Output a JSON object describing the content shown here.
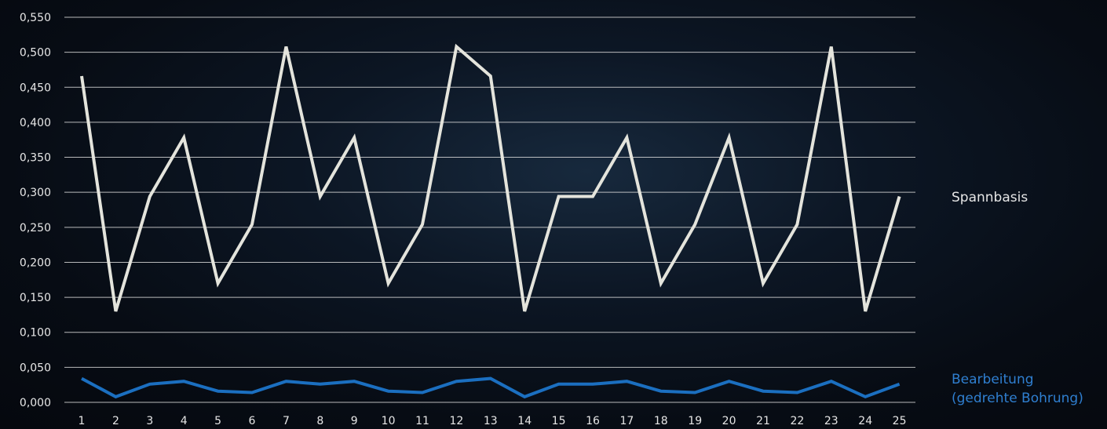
{
  "chart_data": {
    "type": "line",
    "categories": [
      "1",
      "2",
      "3",
      "4",
      "5",
      "6",
      "7",
      "8",
      "9",
      "10",
      "11",
      "12",
      "13",
      "14",
      "15",
      "16",
      "17",
      "18",
      "19",
      "20",
      "21",
      "22",
      "23",
      "24",
      "25"
    ],
    "y_ticks": [
      "0,000",
      "0,050",
      "0,100",
      "0,150",
      "0,200",
      "0,250",
      "0,300",
      "0,350",
      "0,400",
      "0,450",
      "0,500",
      "0,550"
    ],
    "ylim": [
      0,
      0.55
    ],
    "grid": true,
    "series": [
      {
        "name": "Spannbasis",
        "color": "#e4e4dc",
        "values": [
          0.466,
          0.13,
          0.294,
          0.378,
          0.17,
          0.254,
          0.508,
          0.294,
          0.378,
          0.17,
          0.254,
          0.508,
          0.466,
          0.13,
          0.294,
          0.294,
          0.378,
          0.17,
          0.254,
          0.378,
          0.17,
          0.254,
          0.508,
          0.13,
          0.294
        ]
      },
      {
        "name": "Bearbeitung\n(gedrehte Bohrung)",
        "color": "#1b6fc0",
        "values": [
          0.034,
          0.008,
          0.026,
          0.03,
          0.016,
          0.014,
          0.03,
          0.026,
          0.03,
          0.016,
          0.014,
          0.03,
          0.034,
          0.008,
          0.026,
          0.026,
          0.03,
          0.016,
          0.014,
          0.03,
          0.016,
          0.014,
          0.03,
          0.008,
          0.026
        ]
      }
    ],
    "legend": {
      "placement": "right",
      "spannbasis_label": "Spannbasis",
      "bearbeitung_label_line1": "Bearbeitung",
      "bearbeitung_label_line2": "(gedrehte Bohrung)"
    }
  }
}
